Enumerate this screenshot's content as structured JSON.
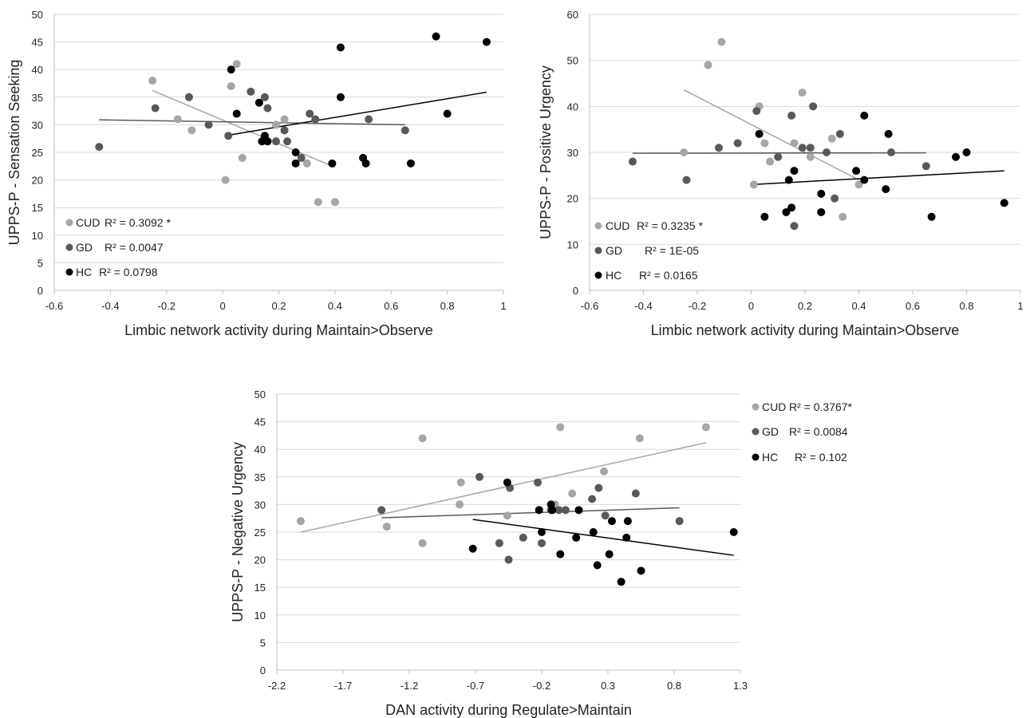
{
  "colors": {
    "CUD": "#a6a6a6",
    "GD": "#595959",
    "HC": "#000000",
    "grid": "#d9d9d9",
    "axis": "#bfbfbf"
  },
  "chart_data": [
    {
      "type": "scatter",
      "title": "",
      "xlabel": "Limbic network activity during Maintain>Observe",
      "ylabel": "UPPS-P - Sensation Seeking",
      "xlim": [
        -0.6,
        1
      ],
      "ylim": [
        0,
        50
      ],
      "xticks": [
        "-0.6",
        "-0.4",
        "-0.2",
        "0",
        "0.2",
        "0.4",
        "0.6",
        "0.8",
        "1"
      ],
      "yticks": [
        "0",
        "5",
        "10",
        "15",
        "20",
        "25",
        "30",
        "35",
        "40",
        "45",
        "50"
      ],
      "grid": "horizontal",
      "legend_position": "bottom-left",
      "series": [
        {
          "name": "CUD",
          "r2_label": "R² = 0.3092 *",
          "points": [
            [
              -0.25,
              38
            ],
            [
              -0.16,
              31
            ],
            [
              -0.11,
              29
            ],
            [
              0.01,
              20
            ],
            [
              0.03,
              37
            ],
            [
              0.05,
              41
            ],
            [
              0.07,
              24
            ],
            [
              0.15,
              28
            ],
            [
              0.16,
              27
            ],
            [
              0.19,
              30
            ],
            [
              0.22,
              31
            ],
            [
              0.3,
              23
            ],
            [
              0.34,
              16
            ],
            [
              0.4,
              16
            ]
          ],
          "trend": [
            [
              -0.25,
              36.2
            ],
            [
              0.4,
              22.3
            ]
          ]
        },
        {
          "name": "GD",
          "r2_label": "R² = 0.0047",
          "points": [
            [
              -0.44,
              26
            ],
            [
              -0.24,
              33
            ],
            [
              -0.12,
              35
            ],
            [
              -0.05,
              30
            ],
            [
              0.02,
              28
            ],
            [
              0.1,
              36
            ],
            [
              0.15,
              35
            ],
            [
              0.16,
              33
            ],
            [
              0.19,
              27
            ],
            [
              0.22,
              29
            ],
            [
              0.23,
              27
            ],
            [
              0.28,
              24
            ],
            [
              0.31,
              32
            ],
            [
              0.33,
              31
            ],
            [
              0.52,
              31
            ],
            [
              0.65,
              29
            ]
          ],
          "trend": [
            [
              -0.44,
              30.9
            ],
            [
              0.65,
              30.0
            ]
          ]
        },
        {
          "name": "HC",
          "r2_label": "R² = 0.0798",
          "points": [
            [
              0.03,
              40
            ],
            [
              0.05,
              32
            ],
            [
              0.13,
              34
            ],
            [
              0.14,
              27
            ],
            [
              0.15,
              28
            ],
            [
              0.16,
              27
            ],
            [
              0.26,
              25
            ],
            [
              0.26,
              23
            ],
            [
              0.39,
              23
            ],
            [
              0.42,
              44
            ],
            [
              0.42,
              35
            ],
            [
              0.5,
              24
            ],
            [
              0.51,
              23
            ],
            [
              0.67,
              23
            ],
            [
              0.76,
              46
            ],
            [
              0.8,
              32
            ],
            [
              0.94,
              45
            ]
          ],
          "trend": [
            [
              0.03,
              28.2
            ],
            [
              0.94,
              35.9
            ]
          ]
        }
      ]
    },
    {
      "type": "scatter",
      "title": "",
      "xlabel": "Limbic network activity during Maintain>Observe",
      "ylabel": "UPPS-P -  Positive Urgency",
      "xlim": [
        -0.6,
        1
      ],
      "ylim": [
        0,
        60
      ],
      "xticks": [
        "-0.6",
        "-0.4",
        "-0.2",
        "0",
        "0.2",
        "0.4",
        "0.6",
        "0.8",
        "1"
      ],
      "yticks": [
        "0",
        "10",
        "20",
        "30",
        "40",
        "50",
        "60"
      ],
      "grid": "horizontal",
      "legend_position": "bottom-left",
      "series": [
        {
          "name": "CUD",
          "r2_label": "R² = 0.3235 *",
          "points": [
            [
              -0.25,
              30
            ],
            [
              -0.16,
              49
            ],
            [
              -0.11,
              54
            ],
            [
              0.01,
              23
            ],
            [
              0.03,
              40
            ],
            [
              0.05,
              32
            ],
            [
              0.07,
              28
            ],
            [
              0.16,
              32
            ],
            [
              0.19,
              43
            ],
            [
              0.22,
              29
            ],
            [
              0.3,
              33
            ],
            [
              0.34,
              16
            ],
            [
              0.4,
              23
            ]
          ],
          "trend": [
            [
              -0.25,
              43.6
            ],
            [
              0.4,
              24.0
            ]
          ]
        },
        {
          "name": "GD",
          "r2_label": "R² = 1E-05",
          "points": [
            [
              -0.44,
              28
            ],
            [
              -0.24,
              24
            ],
            [
              -0.12,
              31
            ],
            [
              -0.05,
              32
            ],
            [
              0.02,
              39
            ],
            [
              0.1,
              29
            ],
            [
              0.15,
              38
            ],
            [
              0.16,
              14
            ],
            [
              0.19,
              31
            ],
            [
              0.22,
              31
            ],
            [
              0.23,
              40
            ],
            [
              0.28,
              30
            ],
            [
              0.31,
              20
            ],
            [
              0.33,
              34
            ],
            [
              0.52,
              30
            ],
            [
              0.65,
              27
            ]
          ],
          "trend": [
            [
              -0.44,
              29.8
            ],
            [
              0.65,
              29.9
            ]
          ]
        },
        {
          "name": "HC",
          "r2_label": "R² = 0.0165",
          "points": [
            [
              0.03,
              34
            ],
            [
              0.05,
              16
            ],
            [
              0.13,
              17
            ],
            [
              0.14,
              24
            ],
            [
              0.15,
              18
            ],
            [
              0.16,
              26
            ],
            [
              0.26,
              17
            ],
            [
              0.26,
              21
            ],
            [
              0.39,
              26
            ],
            [
              0.42,
              24
            ],
            [
              0.42,
              38
            ],
            [
              0.5,
              22
            ],
            [
              0.51,
              34
            ],
            [
              0.67,
              16
            ],
            [
              0.76,
              29
            ],
            [
              0.8,
              30
            ],
            [
              0.94,
              19
            ]
          ],
          "trend": [
            [
              0.0,
              23.0
            ],
            [
              0.94,
              26.0
            ]
          ]
        }
      ]
    },
    {
      "type": "scatter",
      "title": "",
      "xlabel": "DAN activity during Regulate>Maintain",
      "ylabel": "UPPS-P - Negative Urgency",
      "xlim": [
        -2.2,
        1.3
      ],
      "ylim": [
        0,
        50
      ],
      "xticks": [
        "-2.2",
        "-1.7",
        "-1.2",
        "-0.7",
        "-0.2",
        "0.3",
        "0.8",
        "1.3"
      ],
      "yticks": [
        "0",
        "5",
        "10",
        "15",
        "20",
        "25",
        "30",
        "35",
        "40",
        "45",
        "50"
      ],
      "grid": "horizontal",
      "legend_position": "right",
      "series": [
        {
          "name": "CUD",
          "r2_label": "R² = 0.3767*",
          "points": [
            [
              -2.02,
              27
            ],
            [
              -1.37,
              26
            ],
            [
              -1.1,
              42
            ],
            [
              -1.1,
              23
            ],
            [
              -0.81,
              34
            ],
            [
              -0.82,
              30
            ],
            [
              -0.46,
              28
            ],
            [
              -0.1,
              30
            ],
            [
              -0.06,
              44
            ],
            [
              0.03,
              32
            ],
            [
              0.27,
              36
            ],
            [
              0.54,
              42
            ],
            [
              1.04,
              44
            ]
          ],
          "trend": [
            [
              -2.02,
              25.0
            ],
            [
              1.04,
              41.2
            ]
          ]
        },
        {
          "name": "GD",
          "r2_label": "R² = 0.0084",
          "points": [
            [
              -1.41,
              29
            ],
            [
              -0.67,
              35
            ],
            [
              -0.52,
              23
            ],
            [
              -0.44,
              33
            ],
            [
              -0.45,
              20
            ],
            [
              -0.34,
              24
            ],
            [
              -0.23,
              34
            ],
            [
              -0.2,
              23
            ],
            [
              -0.13,
              29
            ],
            [
              -0.07,
              29
            ],
            [
              -0.02,
              29
            ],
            [
              0.18,
              31
            ],
            [
              0.23,
              33
            ],
            [
              0.28,
              28
            ],
            [
              0.51,
              32
            ],
            [
              0.84,
              27
            ]
          ],
          "trend": [
            [
              -1.41,
              27.6
            ],
            [
              0.84,
              29.4
            ]
          ]
        },
        {
          "name": "HC",
          "r2_label": "R² = 0.102",
          "points": [
            [
              -0.72,
              22
            ],
            [
              -0.46,
              34
            ],
            [
              -0.22,
              29
            ],
            [
              -0.2,
              25
            ],
            [
              -0.13,
              30
            ],
            [
              -0.12,
              29
            ],
            [
              -0.06,
              21
            ],
            [
              0.06,
              24
            ],
            [
              0.08,
              29
            ],
            [
              0.19,
              25
            ],
            [
              0.22,
              19
            ],
            [
              0.31,
              21
            ],
            [
              0.33,
              27
            ],
            [
              0.4,
              16
            ],
            [
              0.44,
              24
            ],
            [
              0.45,
              27
            ],
            [
              0.55,
              18
            ],
            [
              1.25,
              25
            ]
          ],
          "trend": [
            [
              -0.72,
              27.3
            ],
            [
              1.25,
              20.8
            ]
          ]
        }
      ]
    }
  ]
}
